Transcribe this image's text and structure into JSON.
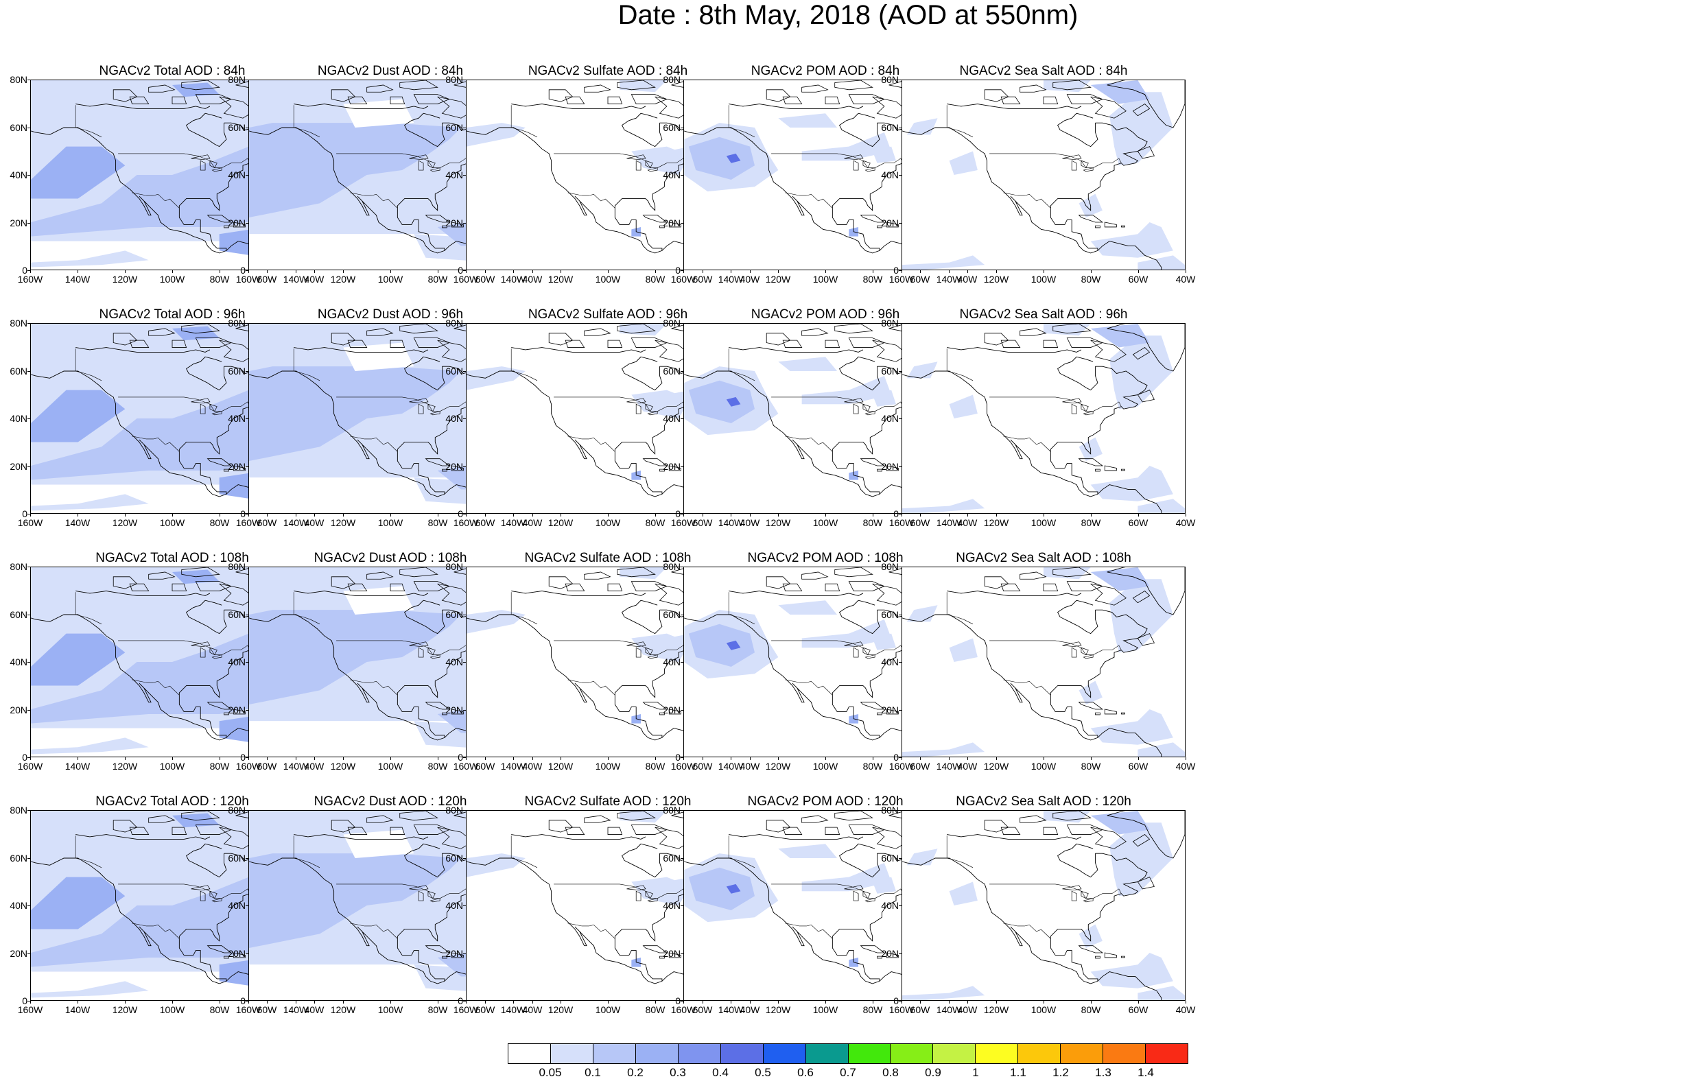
{
  "title": "Date : 8th May, 2018 (AOD at 550nm)",
  "panels": [
    [
      "NGACv2 Total AOD : 84h",
      "NGACv2 Dust AOD : 84h",
      "NGACv2 Sulfate AOD : 84h",
      "NGACv2 POM AOD : 84h",
      "NGACv2 Sea Salt AOD : 84h"
    ],
    [
      "NGACv2 Total AOD : 96h",
      "NGACv2 Dust AOD : 96h",
      "NGACv2 Sulfate AOD : 96h",
      "NGACv2 POM AOD : 96h",
      "NGACv2 Sea Salt AOD : 96h"
    ],
    [
      "NGACv2 Total AOD : 108h",
      "NGACv2 Dust AOD : 108h",
      "NGACv2 Sulfate AOD : 108h",
      "NGACv2 POM AOD : 108h",
      "NGACv2 Sea Salt AOD : 108h"
    ],
    [
      "NGACv2 Total AOD : 120h",
      "NGACv2 Dust AOD : 120h",
      "NGACv2 Sulfate AOD : 120h",
      "NGACv2 POM AOD : 120h",
      "NGACv2 Sea Salt  AOD : 120h"
    ]
  ],
  "lat_ticks": [
    "80N",
    "60N",
    "40N",
    "20N",
    "0"
  ],
  "lon_ticks": [
    "160W",
    "140W",
    "120W",
    "100W",
    "80W",
    "60W",
    "40W"
  ],
  "map_extent": {
    "lon_min": -160,
    "lon_max": -40,
    "lat_min": 0,
    "lat_max": 80
  },
  "colorbar": {
    "labels": [
      "0.05",
      "0.1",
      "0.2",
      "0.3",
      "0.4",
      "0.5",
      "0.6",
      "0.7",
      "0.8",
      "0.9",
      "1",
      "1.1",
      "1.2",
      "1.3",
      "1.4"
    ],
    "colors": [
      "#ffffff",
      "#d6e0fa",
      "#b7c7f7",
      "#9bb1f4",
      "#7f94ef",
      "#5c6fe6",
      "#1f5ff0",
      "#0a9a8f",
      "#42e80c",
      "#86ee17",
      "#c4f244",
      "#fdfd21",
      "#fcc80b",
      "#fb9d0a",
      "#fa7a12",
      "#f92a16"
    ]
  },
  "fields": {
    "total": "widespread light-to-moderate AOD (0.1–0.4) over most of the domain",
    "dust": "widespread light AOD (0.1–0.3) over the domain",
    "sulfate": "mostly below 0.05; patches of 0.05–0.2 over NE US, Canada and Central America",
    "pom": "patches 0.1–0.4 over NE Pacific and Canada; peak near 140W 47N",
    "seasalt": "patches 0.05–0.3 over North Atlantic, Hudson Bay and Caribbean"
  }
}
